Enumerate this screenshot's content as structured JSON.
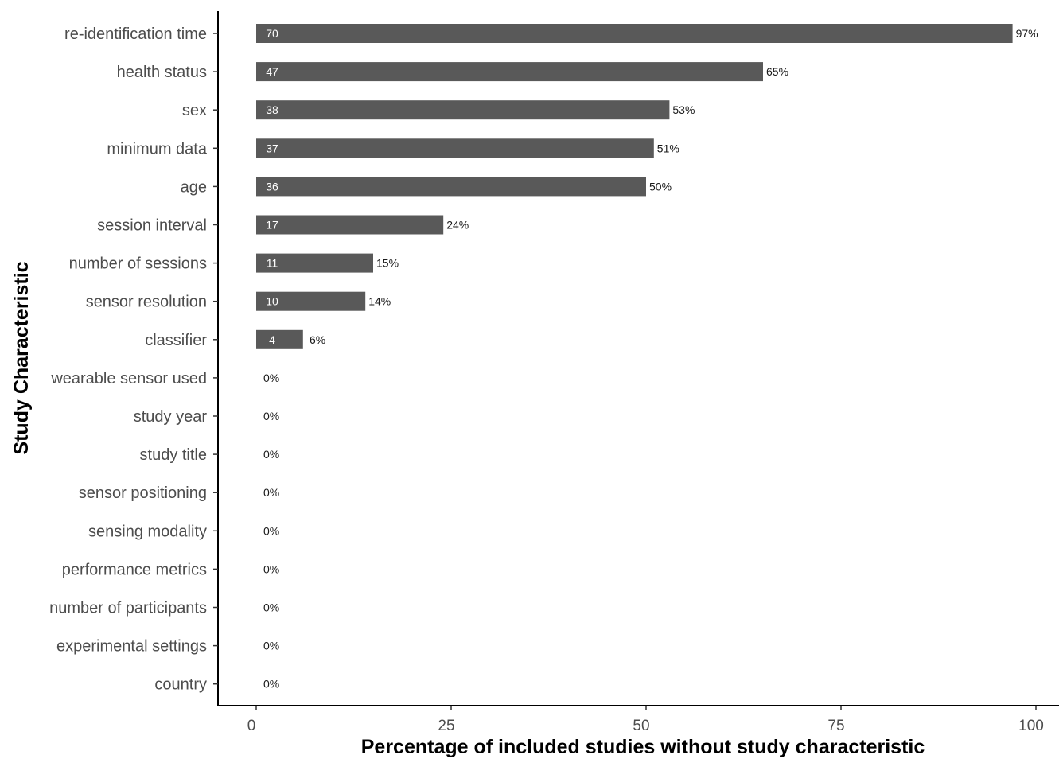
{
  "chart_data": {
    "type": "bar",
    "orientation": "horizontal",
    "xlabel": "Percentage of included studies without study characteristic",
    "ylabel": "Study Characteristic",
    "xlim": [
      0,
      100
    ],
    "xticks": [
      0,
      25,
      50,
      75,
      100
    ],
    "grid": false,
    "bar_color": "#595959",
    "categories": [
      "re-identification time",
      "health status",
      "sex",
      "minimum data",
      "age",
      "session interval",
      "number of sessions",
      "sensor resolution",
      "classifier",
      "wearable sensor used",
      "study year",
      "study title",
      "sensor positioning",
      "sensing modality",
      "performance metrics",
      "number of participants",
      "experimental settings",
      "country"
    ],
    "values": [
      97,
      65,
      53,
      51,
      50,
      24,
      15,
      14,
      6,
      0,
      0,
      0,
      0,
      0,
      0,
      0,
      0,
      0
    ],
    "counts": [
      "70",
      "47",
      "38",
      "37",
      "36",
      "17",
      "11",
      "10",
      "4",
      "",
      "",
      "",
      "",
      "",
      "",
      "",
      "",
      ""
    ],
    "value_labels": [
      "97%",
      "65%",
      "53%",
      "51%",
      "50%",
      "24%",
      "15%",
      "14%",
      "6%",
      "0%",
      "0%",
      "0%",
      "0%",
      "0%",
      "0%",
      "0%",
      "0%",
      "0%"
    ]
  }
}
